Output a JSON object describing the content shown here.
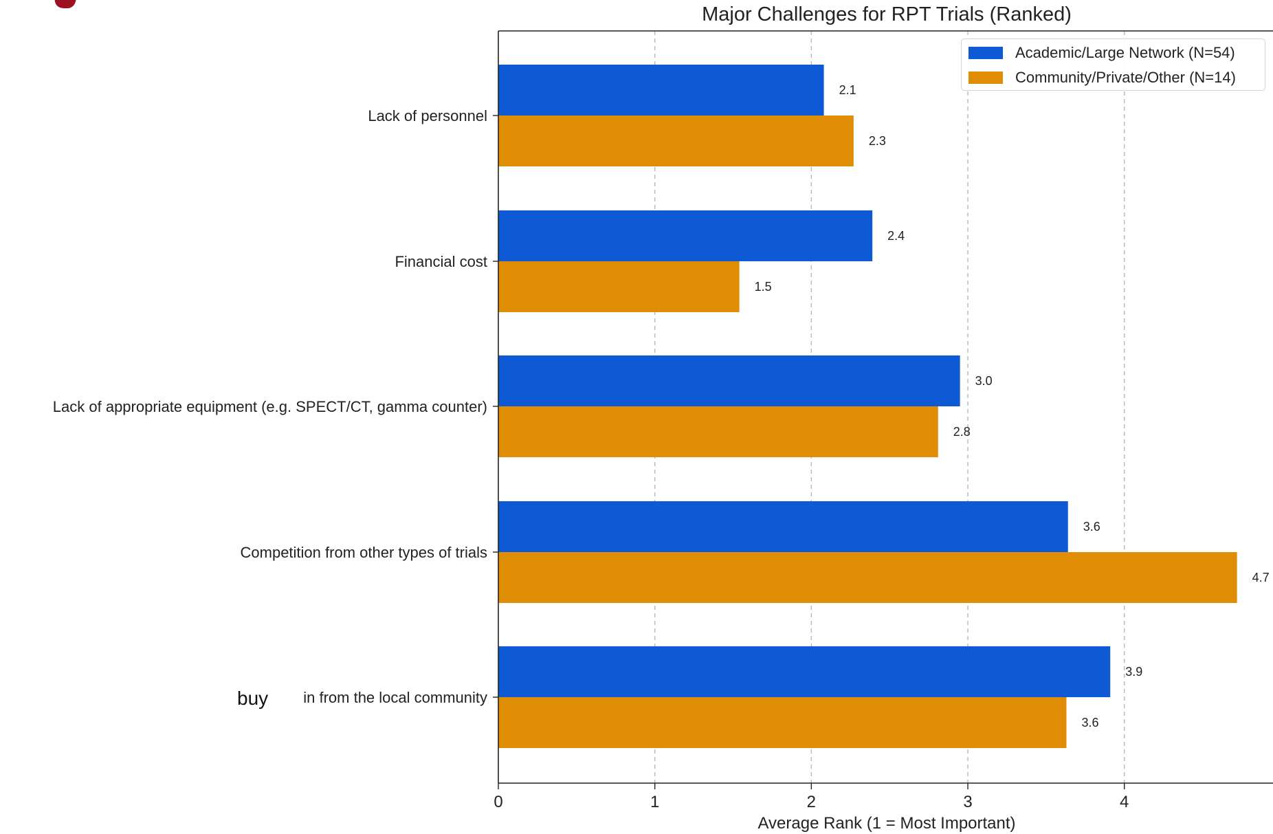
{
  "chart_data": {
    "type": "bar",
    "orientation": "horizontal",
    "title": "Major Challenges for RPT Trials (Ranked)",
    "xlabel": "Average Rank (1 = Most Important)",
    "ylabel": "",
    "xlim": [
      0,
      4.95
    ],
    "x_ticks": [
      0,
      1,
      2,
      3,
      4
    ],
    "grid": "vertical-dashed",
    "legend_placement": "top-right",
    "categories": [
      "Lack of personnel",
      "Financial cost",
      "Lack of appropriate equipment (e.g. SPECT/CT, gamma counter)",
      "Competition from other types of trials",
      "in from the local community"
    ],
    "category_prefix_overlay": {
      "index": 4,
      "text": "buy"
    },
    "series": [
      {
        "name": "Academic/Large Network (N=54)",
        "color": "#0d5ad4",
        "values": [
          2.08,
          2.39,
          2.95,
          3.64,
          3.91
        ],
        "labels": [
          "2.1",
          "2.4",
          "3.0",
          "3.6",
          "3.9"
        ]
      },
      {
        "name": "Community/Private/Other (N=14)",
        "color": "#de8d05",
        "values": [
          2.27,
          1.54,
          2.81,
          4.72,
          3.63
        ],
        "labels": [
          "2.3",
          "1.5",
          "2.8",
          "4.7",
          "3.6"
        ]
      }
    ]
  },
  "decor": {
    "corner_mark_color": "#9c1021",
    "axis_color": "#222222",
    "grid_color": "#b8b8b8"
  }
}
